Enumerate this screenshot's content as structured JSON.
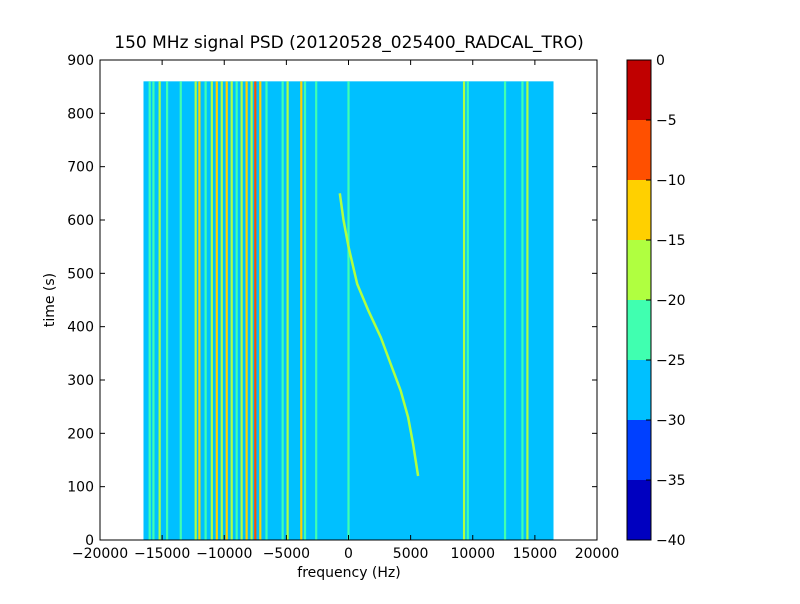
{
  "chart_data": {
    "type": "heatmap",
    "title": "150 MHz signal PSD (20120528_025400_RADCAL_TRO)",
    "xlabel": "frequency (Hz)",
    "ylabel": "time (s)",
    "xlim": [
      -20000,
      20000
    ],
    "ylim": [
      0,
      900
    ],
    "x_ticks": [
      -20000,
      -15000,
      -10000,
      -5000,
      0,
      5000,
      10000,
      15000,
      20000
    ],
    "x_tick_labels": [
      "−20000",
      "−15000",
      "−10000",
      "−5000",
      "0",
      "5000",
      "10000",
      "15000",
      "20000"
    ],
    "y_ticks": [
      0,
      100,
      200,
      300,
      400,
      500,
      600,
      700,
      800,
      900
    ],
    "y_tick_labels": [
      "0",
      "100",
      "200",
      "300",
      "400",
      "500",
      "600",
      "700",
      "800",
      "900"
    ],
    "data_extent": {
      "x": [
        -16500,
        16500
      ],
      "y": [
        0,
        860
      ]
    },
    "background_level": -27.5,
    "colorbar": {
      "levels": [
        -40,
        -35,
        -30,
        -25,
        -20,
        -15,
        -10,
        -5,
        0
      ],
      "tick_labels": [
        "−40",
        "−35",
        "−30",
        "−25",
        "−20",
        "−15",
        "−10",
        "−5",
        "0"
      ],
      "colors": [
        "#0000c0",
        "#0040ff",
        "#00c0ff",
        "#40ffb0",
        "#b0ff40",
        "#ffd000",
        "#ff5000",
        "#c00000"
      ]
    },
    "vertical_lines": [
      {
        "f": -16000,
        "level": -22.5
      },
      {
        "f": -15700,
        "level": -22.5
      },
      {
        "f": -15200,
        "level": -17.5
      },
      {
        "f": -14600,
        "level": -22.5
      },
      {
        "f": -13500,
        "level": -22.5
      },
      {
        "f": -12300,
        "level": -17.5
      },
      {
        "f": -12000,
        "level": -12.5
      },
      {
        "f": -11500,
        "level": -22.5
      },
      {
        "f": -11000,
        "level": -17.5
      },
      {
        "f": -10600,
        "level": -12.5
      },
      {
        "f": -10200,
        "level": -17.5
      },
      {
        "f": -9800,
        "level": -12.5
      },
      {
        "f": -9400,
        "level": -17.5
      },
      {
        "f": -9000,
        "level": -22.5
      },
      {
        "f": -8600,
        "level": -17.5
      },
      {
        "f": -8200,
        "level": -12.5
      },
      {
        "f": -7800,
        "level": -17.5
      },
      {
        "f": -7500,
        "level": -7.5
      },
      {
        "f": -7100,
        "level": -12.5
      },
      {
        "f": -6600,
        "level": -22.5
      },
      {
        "f": -5300,
        "level": -22.5
      },
      {
        "f": -4900,
        "level": -17.5
      },
      {
        "f": -3800,
        "level": -12.5
      },
      {
        "f": -3500,
        "level": -22.5
      },
      {
        "f": -2600,
        "level": -22.5
      },
      {
        "f": 0,
        "level": -22.5
      },
      {
        "f": 9300,
        "level": -17.5
      },
      {
        "f": 9600,
        "level": -22.5
      },
      {
        "f": 12600,
        "level": -22.5
      },
      {
        "f": 14000,
        "level": -22.5
      },
      {
        "f": 14400,
        "level": -17.5
      }
    ],
    "sweep_track": {
      "level": -17.5,
      "points": [
        [
          -700,
          650
        ],
        [
          -400,
          600
        ],
        [
          0,
          550
        ],
        [
          700,
          480
        ],
        [
          1600,
          430
        ],
        [
          2600,
          380
        ],
        [
          3400,
          330
        ],
        [
          4200,
          280
        ],
        [
          4800,
          230
        ],
        [
          5200,
          180
        ],
        [
          5400,
          150
        ],
        [
          5600,
          120
        ]
      ]
    }
  }
}
